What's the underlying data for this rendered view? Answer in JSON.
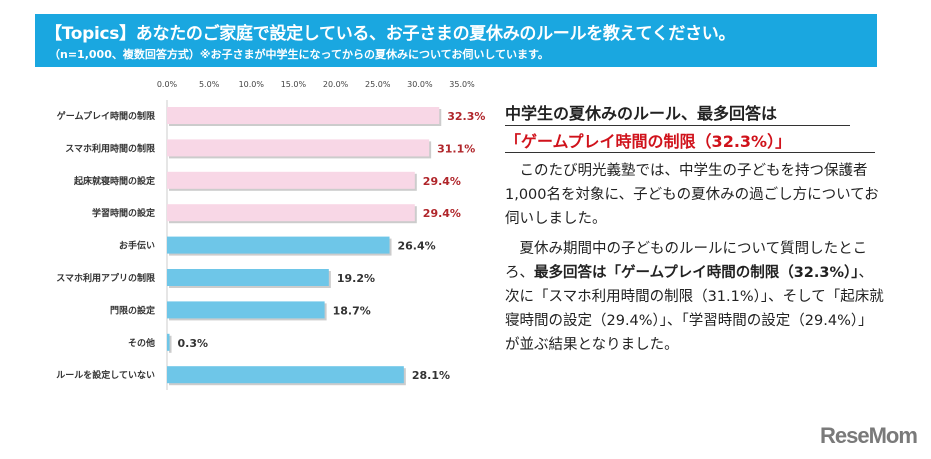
{
  "banner": {
    "title": "【Topics】あなたのご家庭で設定している、お子さまの夏休みのルールを教えてください。",
    "subtitle": "（n=1,000、複数回答方式）※お子さまが中学生になってからの夏休みについてお伺いしています。"
  },
  "chart_data": {
    "type": "bar",
    "orientation": "horizontal",
    "categories": [
      "ゲームプレイ時間の制限",
      "スマホ利用時間の制限",
      "起床就寝時間の設定",
      "学習時間の設定",
      "お手伝い",
      "スマホ利用アプリの制限",
      "門限の設定",
      "その他",
      "ルールを設定していない"
    ],
    "values": [
      32.3,
      31.1,
      29.4,
      29.4,
      26.4,
      19.2,
      18.7,
      0.3,
      28.1
    ],
    "value_labels": [
      "32.3%",
      "31.1%",
      "29.4%",
      "29.4%",
      "26.4%",
      "19.2%",
      "18.7%",
      "0.3%",
      "28.1%"
    ],
    "highlighted": [
      true,
      true,
      true,
      true,
      false,
      false,
      false,
      false,
      false
    ],
    "xlim": [
      0,
      35
    ],
    "ticks": [
      "0.0%",
      "5.0%",
      "10.0%",
      "15.0%",
      "20.0%",
      "25.0%",
      "30.0%",
      "35.0%"
    ],
    "xaxis_position": "top",
    "grid": false,
    "colors": {
      "highlight": "#f8d7e6",
      "normal": "#6ec6e8",
      "highlight_label": "#b0262b",
      "normal_label": "#333333"
    }
  },
  "article": {
    "heading_line1": "中学生の夏休みのルール、最多回答は",
    "heading_line2": "「ゲームプレイ時間の制限（32.3%）」",
    "para1": "　このたび明光義塾では、中学生の子どもを持つ保護者1,000名を対象に、子どもの夏休みの過ごし方についてお伺いしました。",
    "para2_pre": "　夏休み期間中の子どものルールについて質問したところ、",
    "para2_bold": "最多回答は「ゲームプレイ時間の制限（32.3%）」",
    "para2_post": "、次に「スマホ利用時間の制限（31.1%）」、そして「起床就寝時間の設定（29.4%）」、「学習時間の設定（29.4%）」が並ぶ結果となりました。"
  },
  "logo": "ReseMom"
}
